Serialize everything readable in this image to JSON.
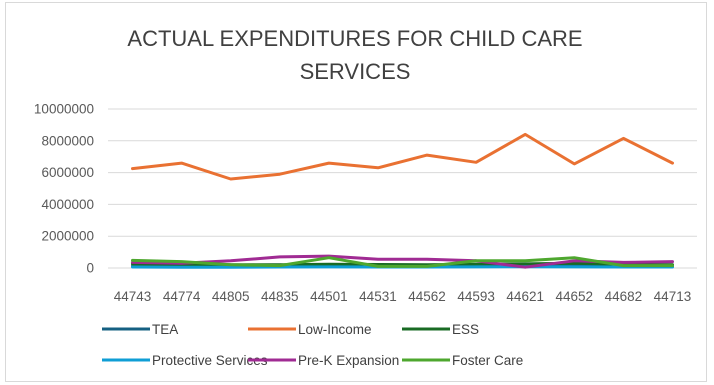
{
  "chart_data": {
    "type": "line",
    "title": "ACTUAL EXPENDITURES FOR CHILD CARE SERVICES",
    "xlabel": "",
    "ylabel": "",
    "categories": [
      "44743",
      "44774",
      "44805",
      "44835",
      "44501",
      "44531",
      "44562",
      "44593",
      "44621",
      "44652",
      "44682",
      "44713"
    ],
    "ylim": [
      0,
      10000000
    ],
    "yticks": [
      0,
      2000000,
      4000000,
      6000000,
      8000000,
      10000000
    ],
    "grid": true,
    "legend_position": "bottom",
    "series": [
      {
        "name": "TEA",
        "color": "#156082",
        "values": [
          120000,
          110000,
          100000,
          110000,
          130000,
          140000,
          130000,
          150000,
          200000,
          150000,
          120000,
          110000
        ]
      },
      {
        "name": "Low-Income",
        "color": "#E97132",
        "values": [
          6250000,
          6600000,
          5600000,
          5900000,
          6600000,
          6300000,
          7100000,
          6650000,
          8400000,
          6550000,
          8150000,
          6600000
        ]
      },
      {
        "name": "ESS",
        "color": "#196B24",
        "values": [
          250000,
          220000,
          200000,
          200000,
          230000,
          220000,
          200000,
          230000,
          260000,
          300000,
          220000,
          200000
        ]
      },
      {
        "name": "Protective Services",
        "color": "#0F9ED5",
        "values": [
          60000,
          50000,
          50000,
          60000,
          70000,
          60000,
          60000,
          70000,
          80000,
          70000,
          60000,
          60000
        ]
      },
      {
        "name": "Pre-K Expansion",
        "color": "#A02B93",
        "values": [
          350000,
          300000,
          450000,
          700000,
          750000,
          550000,
          550000,
          450000,
          50000,
          450000,
          350000,
          400000
        ]
      },
      {
        "name": "Foster Care",
        "color": "#4EA72E",
        "values": [
          480000,
          400000,
          200000,
          150000,
          650000,
          100000,
          100000,
          450000,
          450000,
          650000,
          150000,
          150000
        ]
      }
    ]
  }
}
